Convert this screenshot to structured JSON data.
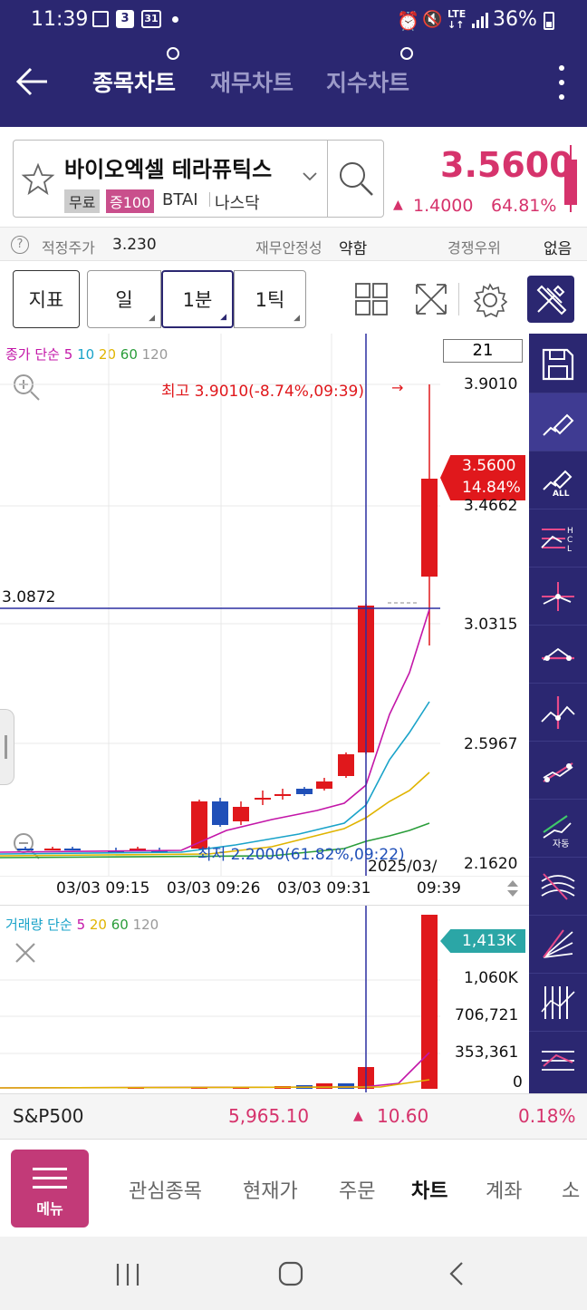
{
  "status": {
    "time": "11:39",
    "calendar_badge": "3",
    "calendar_badge2": "31",
    "battery": "36%"
  },
  "appbar": {
    "tabs": [
      {
        "label": "종목차트"
      },
      {
        "label": "재무차트"
      },
      {
        "label": "지수차트"
      }
    ]
  },
  "stock": {
    "name": "바이오엑셀 테라퓨틱스",
    "tags": {
      "free": "무료",
      "margin": "증100",
      "ticker": "BTAI",
      "market": "나스닥"
    },
    "price": "3.5600",
    "change": "1.4000",
    "change_pct": "64.81%"
  },
  "info": {
    "fair_label": "적정주가",
    "fair_value": "3.230",
    "fin_label": "재무안정성",
    "fin_value": "약함",
    "comp_label": "경쟁우위",
    "comp_value": "없음"
  },
  "toolbar": {
    "indicator": "지표",
    "day": "일",
    "min1": "1분",
    "tick1": "1틱"
  },
  "chart": {
    "legend_title": "종가 단순",
    "ma": [
      "5",
      "10",
      "20",
      "60",
      "120"
    ],
    "ma_colors": [
      "#c316a8",
      "#1aa3c9",
      "#e0b400",
      "#2a9d3a",
      "#999999"
    ],
    "count_box": "21",
    "high_label": "최고 3.9010(-8.74%,09:39)",
    "low_label": "최저 2.2000(61.82%,09:22)",
    "crosshair_label": "3.0872",
    "current_price": "3.5600",
    "current_pct": "14.84%",
    "y_ticks": [
      "3.9010",
      "3.4662",
      "3.0315",
      "2.5967",
      "2.1620"
    ],
    "x_ticks": [
      "03/03 09:15",
      "03/03 09:26",
      "03/03 09:31",
      "2025/03/",
      "09:39"
    ]
  },
  "volume": {
    "legend_title": "거래량 단순",
    "ma": [
      "5",
      "20",
      "60",
      "120"
    ],
    "ma_colors": [
      "#c316a8",
      "#e0b400",
      "#2a9d3a",
      "#999999"
    ],
    "current": "1,413K",
    "y_ticks": [
      "1,060K",
      "706,721",
      "353,361",
      "0"
    ]
  },
  "side_tools": {
    "tool3_label": "ALL",
    "tool9_label": "자동"
  },
  "index": {
    "name": "S&P500",
    "value": "5,965.10",
    "change": "10.60",
    "pct": "0.18%"
  },
  "bottom_nav": {
    "menu": "메뉴",
    "items": [
      "관심종목",
      "현재가",
      "주문",
      "차트",
      "계좌",
      "소"
    ]
  },
  "colors": {
    "header": "#2b2771",
    "up": "#e0181c",
    "down": "#1f4fb8",
    "pink": "#d6336c"
  }
}
